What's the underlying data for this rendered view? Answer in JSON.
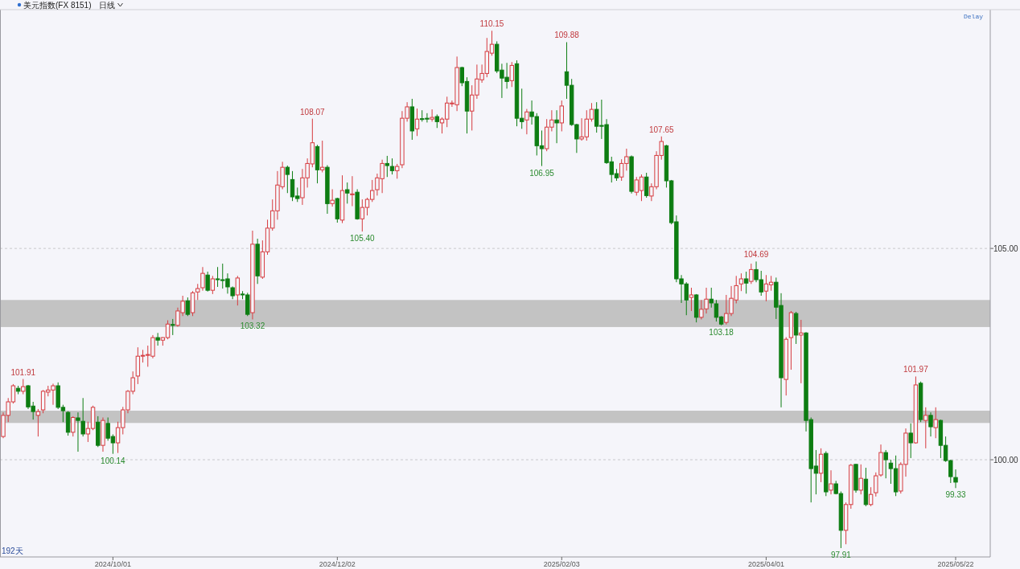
{
  "chart_data": {
    "type": "candlestick",
    "title": "美元指数(FX 8151)",
    "subtitle": "日线",
    "categories": [
      null,
      null,
      null,
      null,
      null,
      null,
      null,
      null,
      null,
      null,
      null,
      null,
      null,
      null,
      null,
      null,
      null,
      null,
      null,
      null,
      null,
      null,
      "2024/10/01",
      null,
      null,
      null,
      null,
      null,
      null,
      null,
      null,
      null,
      null,
      null,
      null,
      null,
      null,
      null,
      null,
      null,
      null,
      null,
      null,
      null,
      null,
      null,
      null,
      null,
      null,
      null,
      null,
      null,
      null,
      null,
      null,
      null,
      null,
      null,
      null,
      null,
      null,
      null,
      null,
      null,
      null,
      null,
      null,
      "2024/12/02",
      null,
      null,
      null,
      null,
      null,
      null,
      null,
      null,
      null,
      null,
      null,
      null,
      null,
      null,
      null,
      null,
      null,
      null,
      null,
      null,
      null,
      null,
      null,
      null,
      null,
      null,
      null,
      null,
      null,
      null,
      null,
      null,
      null,
      null,
      null,
      null,
      null,
      null,
      null,
      null,
      null,
      null,
      null,
      null,
      "2025/02/03",
      null,
      null,
      null,
      null,
      null,
      null,
      null,
      null,
      null,
      null,
      null,
      null,
      null,
      null,
      null,
      null,
      null,
      null,
      null,
      null,
      null,
      null,
      null,
      null,
      null,
      null,
      null,
      null,
      null,
      null,
      null,
      null,
      null,
      null,
      null,
      null,
      null,
      null,
      null,
      null,
      "2025/04/01",
      null,
      null,
      null,
      null,
      null,
      null,
      null,
      null,
      null,
      null,
      null,
      null,
      null,
      null,
      null,
      null,
      null,
      null,
      null,
      null,
      null,
      null,
      null,
      null,
      null,
      null,
      null,
      null,
      null,
      null,
      null,
      null,
      null,
      null,
      null,
      null,
      null,
      "2025/05/22"
    ],
    "ohlc": [
      [
        100.55,
        101.12,
        100.51,
        101.05
      ],
      [
        101.05,
        101.46,
        100.89,
        101.37
      ],
      [
        101.37,
        101.79,
        101.33,
        101.75
      ],
      [
        101.69,
        101.75,
        101.55,
        101.62
      ],
      [
        101.62,
        101.91,
        101.55,
        101.73
      ],
      [
        101.75,
        101.77,
        101.2,
        101.25
      ],
      [
        101.27,
        101.37,
        100.95,
        101.14
      ],
      [
        101.05,
        101.2,
        100.55,
        101.14
      ],
      [
        101.18,
        101.65,
        101.1,
        101.62
      ],
      [
        101.6,
        101.75,
        101.5,
        101.65
      ],
      [
        101.65,
        101.8,
        101.3,
        101.75
      ],
      [
        101.75,
        101.83,
        101.2,
        101.24
      ],
      [
        101.24,
        101.3,
        100.89,
        101.16
      ],
      [
        101.12,
        101.15,
        100.57,
        100.65
      ],
      [
        100.65,
        101.03,
        100.55,
        101.0
      ],
      [
        100.99,
        101.12,
        100.19,
        100.93
      ],
      [
        100.91,
        101.46,
        100.55,
        100.61
      ],
      [
        100.61,
        100.9,
        100.42,
        100.74
      ],
      [
        100.74,
        101.28,
        100.7,
        101.24
      ],
      [
        100.89,
        101.03,
        100.3,
        100.34
      ],
      [
        100.34,
        101.0,
        100.19,
        100.93
      ],
      [
        100.86,
        101.0,
        100.45,
        100.51
      ],
      [
        100.55,
        100.6,
        100.14,
        100.4
      ],
      [
        100.4,
        100.9,
        100.16,
        100.76
      ],
      [
        100.76,
        101.25,
        100.6,
        101.18
      ],
      [
        101.18,
        101.65,
        101.1,
        101.62
      ],
      [
        101.62,
        102.09,
        101.55,
        101.94
      ],
      [
        101.98,
        102.66,
        101.79,
        102.45
      ],
      [
        102.45,
        102.6,
        102.3,
        102.47
      ],
      [
        102.47,
        102.7,
        102.2,
        102.49
      ],
      [
        102.45,
        102.95,
        102.4,
        102.89
      ],
      [
        102.89,
        103.0,
        102.7,
        102.83
      ],
      [
        102.83,
        102.9,
        102.7,
        102.89
      ],
      [
        102.89,
        103.3,
        102.85,
        103.21
      ],
      [
        103.2,
        103.33,
        102.95,
        103.18
      ],
      [
        103.18,
        103.6,
        103.15,
        103.52
      ],
      [
        103.48,
        103.88,
        103.4,
        103.75
      ],
      [
        103.76,
        103.84,
        103.4,
        103.44
      ],
      [
        103.48,
        103.99,
        103.4,
        103.95
      ],
      [
        103.97,
        104.16,
        103.78,
        104.05
      ],
      [
        104.07,
        104.56,
        104.0,
        104.41
      ],
      [
        104.37,
        104.45,
        103.98,
        104.01
      ],
      [
        104.01,
        104.35,
        103.92,
        104.28
      ],
      [
        104.28,
        104.56,
        104.09,
        104.26
      ],
      [
        104.26,
        104.64,
        104.05,
        104.24
      ],
      [
        104.28,
        104.41,
        103.93,
        104.09
      ],
      [
        104.07,
        104.1,
        103.8,
        103.88
      ],
      [
        103.9,
        104.35,
        103.65,
        104.3
      ],
      [
        103.92,
        103.99,
        103.8,
        103.9
      ],
      [
        103.9,
        103.95,
        103.4,
        103.44
      ],
      [
        103.48,
        105.42,
        103.32,
        105.1
      ],
      [
        105.1,
        105.23,
        104.16,
        104.35
      ],
      [
        104.32,
        105.19,
        104.28,
        104.92
      ],
      [
        104.92,
        105.68,
        104.85,
        105.48
      ],
      [
        105.48,
        106.16,
        105.42,
        105.89
      ],
      [
        105.89,
        106.83,
        105.68,
        106.5
      ],
      [
        106.46,
        107.05,
        106.4,
        106.92
      ],
      [
        106.92,
        106.96,
        106.31,
        106.75
      ],
      [
        106.63,
        106.83,
        106.12,
        106.22
      ],
      [
        106.24,
        106.44,
        106.1,
        106.18
      ],
      [
        106.2,
        106.88,
        106.03,
        106.67
      ],
      [
        106.67,
        107.13,
        106.44,
        107.01
      ],
      [
        107.0,
        108.07,
        106.92,
        107.5
      ],
      [
        107.41,
        107.45,
        106.54,
        106.86
      ],
      [
        106.86,
        107.55,
        106.8,
        106.92
      ],
      [
        106.92,
        106.97,
        105.82,
        106.06
      ],
      [
        106.06,
        106.4,
        105.99,
        106.14
      ],
      [
        106.18,
        106.2,
        105.61,
        105.7
      ],
      [
        105.67,
        106.73,
        105.6,
        106.37
      ],
      [
        106.39,
        106.56,
        106.06,
        106.31
      ],
      [
        106.27,
        106.71,
        106.0,
        106.29
      ],
      [
        106.33,
        106.4,
        105.68,
        105.7
      ],
      [
        105.7,
        106.16,
        105.4,
        105.97
      ],
      [
        105.97,
        106.2,
        105.78,
        106.16
      ],
      [
        106.16,
        106.62,
        106.1,
        106.37
      ],
      [
        106.39,
        106.77,
        106.25,
        106.67
      ],
      [
        106.65,
        107.1,
        106.31,
        107.01
      ],
      [
        107.01,
        107.19,
        106.69,
        106.96
      ],
      [
        106.94,
        107.13,
        106.75,
        106.84
      ],
      [
        106.84,
        107.0,
        106.65,
        106.94
      ],
      [
        106.98,
        108.25,
        106.9,
        108.08
      ],
      [
        108.08,
        108.46,
        108.0,
        108.35
      ],
      [
        108.35,
        108.54,
        107.57,
        107.78
      ],
      [
        107.83,
        108.31,
        107.66,
        108.06
      ],
      [
        108.07,
        108.27,
        108.0,
        108.06
      ],
      [
        108.08,
        108.2,
        107.98,
        108.06
      ],
      [
        108.06,
        108.29,
        108.0,
        108.1
      ],
      [
        108.12,
        108.17,
        107.85,
        108.0
      ],
      [
        107.97,
        108.1,
        107.72,
        108.06
      ],
      [
        108.06,
        108.59,
        107.87,
        108.44
      ],
      [
        108.42,
        108.5,
        108.35,
        108.44
      ],
      [
        108.4,
        109.54,
        108.25,
        109.28
      ],
      [
        109.28,
        109.3,
        108.84,
        108.92
      ],
      [
        108.95,
        109.05,
        107.72,
        108.25
      ],
      [
        108.25,
        108.86,
        107.79,
        108.63
      ],
      [
        108.63,
        109.35,
        108.54,
        109.01
      ],
      [
        108.99,
        109.35,
        108.92,
        109.14
      ],
      [
        109.14,
        109.98,
        109.05,
        109.66
      ],
      [
        109.62,
        110.15,
        109.56,
        109.83
      ],
      [
        109.83,
        109.9,
        109.15,
        109.2
      ],
      [
        109.22,
        109.37,
        108.56,
        109.03
      ],
      [
        109.05,
        109.39,
        108.78,
        108.95
      ],
      [
        108.97,
        109.41,
        108.82,
        109.33
      ],
      [
        109.37,
        109.45,
        107.89,
        108.08
      ],
      [
        108.08,
        108.78,
        107.83,
        108.0
      ],
      [
        108.04,
        108.3,
        107.7,
        108.23
      ],
      [
        108.23,
        108.5,
        107.93,
        108.12
      ],
      [
        108.12,
        108.2,
        107.2,
        107.43
      ],
      [
        107.43,
        107.79,
        106.95,
        107.36
      ],
      [
        107.36,
        108.06,
        107.3,
        107.87
      ],
      [
        107.87,
        108.27,
        107.77,
        108.04
      ],
      [
        108.04,
        108.27,
        107.49,
        107.97
      ],
      [
        107.97,
        108.5,
        107.77,
        108.37
      ],
      [
        109.18,
        109.88,
        108.54,
        108.86
      ],
      [
        108.86,
        109.01,
        107.9,
        107.93
      ],
      [
        107.93,
        107.95,
        107.26,
        107.59
      ],
      [
        107.59,
        108.08,
        107.55,
        107.64
      ],
      [
        107.64,
        108.27,
        107.55,
        108.06
      ],
      [
        108.06,
        108.44,
        108.0,
        108.29
      ],
      [
        108.29,
        108.46,
        107.74,
        107.89
      ],
      [
        107.91,
        108.52,
        107.59,
        107.89
      ],
      [
        107.93,
        108.06,
        107.0,
        107.03
      ],
      [
        107.05,
        107.17,
        106.56,
        106.75
      ],
      [
        106.77,
        106.88,
        106.6,
        106.67
      ],
      [
        106.69,
        107.11,
        106.6,
        107.01
      ],
      [
        107.01,
        107.36,
        106.84,
        107.17
      ],
      [
        107.17,
        107.2,
        106.3,
        106.35
      ],
      [
        106.33,
        106.69,
        106.25,
        106.62
      ],
      [
        106.37,
        106.75,
        106.12,
        106.69
      ],
      [
        106.69,
        106.79,
        106.2,
        106.25
      ],
      [
        106.24,
        106.54,
        106.12,
        106.46
      ],
      [
        106.46,
        107.3,
        106.4,
        107.2
      ],
      [
        107.2,
        107.65,
        107.1,
        107.53
      ],
      [
        107.43,
        107.45,
        106.44,
        106.6
      ],
      [
        106.6,
        106.62,
        105.57,
        105.61
      ],
      [
        105.63,
        105.78,
        104.2,
        104.28
      ],
      [
        104.28,
        104.37,
        103.71,
        104.16
      ],
      [
        104.16,
        104.2,
        103.42,
        103.78
      ],
      [
        103.84,
        104.07,
        103.52,
        103.9
      ],
      [
        103.9,
        103.92,
        103.25,
        103.37
      ],
      [
        103.37,
        103.78,
        103.32,
        103.56
      ],
      [
        103.57,
        104.07,
        103.46,
        103.8
      ],
      [
        103.8,
        104.07,
        103.6,
        103.71
      ],
      [
        103.69,
        103.78,
        103.27,
        103.37
      ],
      [
        103.38,
        103.4,
        103.18,
        103.21
      ],
      [
        103.25,
        103.9,
        103.2,
        103.46
      ],
      [
        103.46,
        104.11,
        103.4,
        103.82
      ],
      [
        103.78,
        104.35,
        103.7,
        104.12
      ],
      [
        104.16,
        104.41,
        103.99,
        104.28
      ],
      [
        104.28,
        104.45,
        103.93,
        104.18
      ],
      [
        104.22,
        104.64,
        104.16,
        104.5
      ],
      [
        104.5,
        104.69,
        104.2,
        104.26
      ],
      [
        104.26,
        104.47,
        103.88,
        103.97
      ],
      [
        103.99,
        104.37,
        103.75,
        104.16
      ],
      [
        104.14,
        104.35,
        104.0,
        104.2
      ],
      [
        104.2,
        104.31,
        103.33,
        103.61
      ],
      [
        103.65,
        103.94,
        101.24,
        101.94
      ],
      [
        101.9,
        102.9,
        101.52,
        102.85
      ],
      [
        102.89,
        103.52,
        102.13,
        103.48
      ],
      [
        103.46,
        103.5,
        102.74,
        102.95
      ],
      [
        102.95,
        103.31,
        101.81,
        103.0
      ],
      [
        103.0,
        103.02,
        100.67,
        100.93
      ],
      [
        100.95,
        101.0,
        98.99,
        99.79
      ],
      [
        99.85,
        100.23,
        99.18,
        99.68
      ],
      [
        99.68,
        100.27,
        99.47,
        100.13
      ],
      [
        100.15,
        100.2,
        99.14,
        99.24
      ],
      [
        99.28,
        99.75,
        99.18,
        99.43
      ],
      [
        99.43,
        99.5,
        99.18,
        99.2
      ],
      [
        99.2,
        99.25,
        97.91,
        98.33
      ],
      [
        98.33,
        98.99,
        98.0,
        98.94
      ],
      [
        98.94,
        99.9,
        98.84,
        99.87
      ],
      [
        99.89,
        99.9,
        99.22,
        99.28
      ],
      [
        99.28,
        99.89,
        99.18,
        99.56
      ],
      [
        99.54,
        99.81,
        98.9,
        98.94
      ],
      [
        98.94,
        99.35,
        98.9,
        99.18
      ],
      [
        99.22,
        99.7,
        99.13,
        99.62
      ],
      [
        99.64,
        100.36,
        99.6,
        100.17
      ],
      [
        100.17,
        100.23,
        99.56,
        100.0
      ],
      [
        99.92,
        100.0,
        99.43,
        99.79
      ],
      [
        99.79,
        100.1,
        99.14,
        99.24
      ],
      [
        99.26,
        99.94,
        99.2,
        99.89
      ],
      [
        99.89,
        100.74,
        99.6,
        100.63
      ],
      [
        100.63,
        100.86,
        100.04,
        100.4
      ],
      [
        100.4,
        101.97,
        100.38,
        101.77
      ],
      [
        101.81,
        101.85,
        100.89,
        100.95
      ],
      [
        100.93,
        101.24,
        100.27,
        101.05
      ],
      [
        101.05,
        101.12,
        100.55,
        100.78
      ],
      [
        100.76,
        101.24,
        100.51,
        100.95
      ],
      [
        100.93,
        100.95,
        100.04,
        100.34
      ],
      [
        100.34,
        100.55,
        99.95,
        99.98
      ],
      [
        99.98,
        100.0,
        99.45,
        99.6
      ],
      [
        99.58,
        99.77,
        99.33,
        99.47
      ]
    ],
    "ylim": [
      97.7,
      110.65
    ],
    "yticks": [
      {
        "value": 100,
        "label": "100.00"
      },
      {
        "value": 105,
        "label": "105.00"
      }
    ],
    "grid": "y",
    "bands": [
      {
        "axis": "y",
        "from": 100.87,
        "to": 101.16,
        "color": "#c3c3c3"
      },
      {
        "axis": "y",
        "from": 103.14,
        "to": 103.78,
        "color": "#c3c3c3"
      }
    ],
    "annotations": [
      {
        "text": "101.91",
        "y": 101.91
      },
      {
        "text": "100.14",
        "y": 100.14
      },
      {
        "text": "103.32",
        "y": 103.32
      },
      {
        "text": "108.07",
        "y": 108.07
      },
      {
        "text": "105.40",
        "y": 105.4
      },
      {
        "text": "110.15",
        "y": 110.15
      },
      {
        "text": "106.95",
        "y": 106.95
      },
      {
        "text": "109.88",
        "y": 109.88
      },
      {
        "text": "107.65",
        "y": 107.65
      },
      {
        "text": "103.18",
        "y": 103.18
      },
      {
        "text": "104.69",
        "y": 104.69
      },
      {
        "text": "97.91",
        "y": 97.91
      },
      {
        "text": "101.97",
        "y": 101.97
      },
      {
        "text": "99.33",
        "y": 99.33
      },
      "192天",
      "Delay"
    ]
  }
}
